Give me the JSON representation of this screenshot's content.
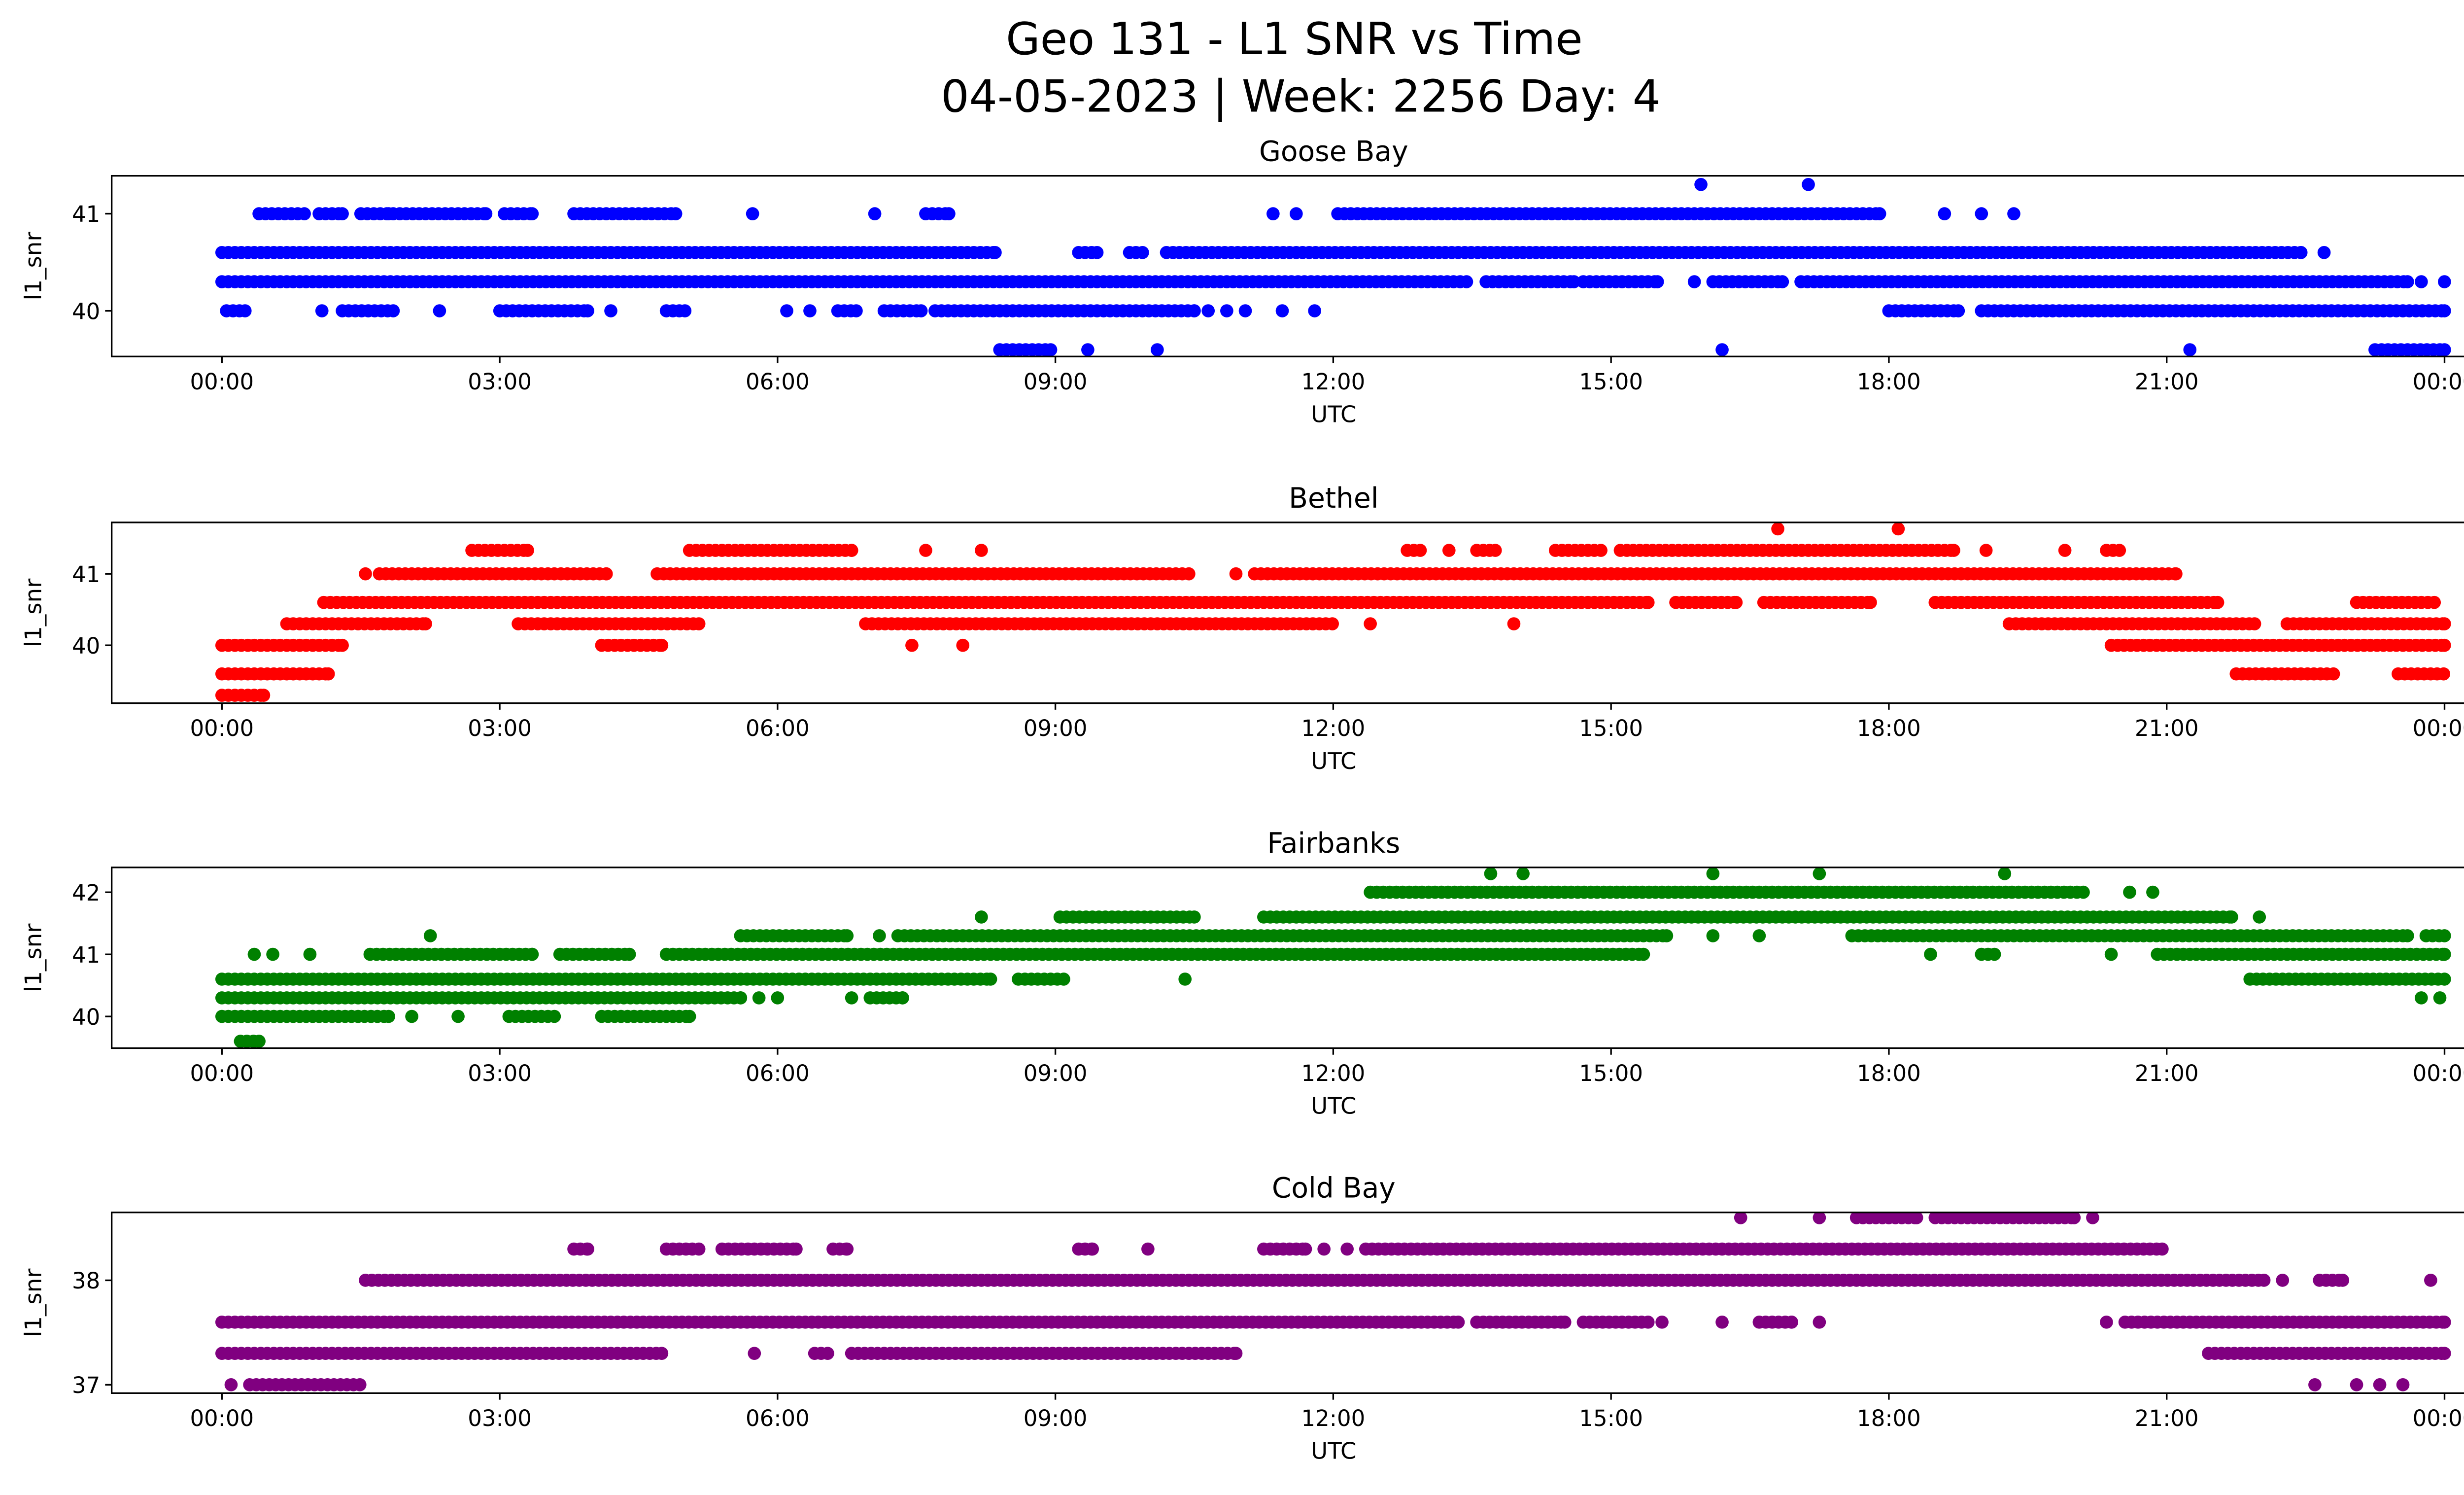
{
  "chart_data": {
    "type": "scatter",
    "title": [
      "Geo 131 - L1 SNR vs Time",
      "04-05-2023 | Week: 2256 Day: 4"
    ],
    "x_unit": "hours UTC",
    "xlim": [
      -1.19,
      25.2
    ],
    "x_ticks": [
      0,
      3,
      6,
      9,
      12,
      15,
      18,
      21,
      24
    ],
    "x_tick_labels": [
      "00:00",
      "03:00",
      "06:00",
      "09:00",
      "12:00",
      "15:00",
      "18:00",
      "21:00",
      "00:00"
    ],
    "subplots": [
      {
        "title": "Goose Bay",
        "xlabel": "UTC",
        "ylabel": "l1_snr",
        "color": "#0000ff",
        "ylim": [
          39.53,
          41.39
        ],
        "y_ticks": [
          40,
          41
        ],
        "y_tick_labels": [
          "40",
          "41"
        ],
        "runs": [
          [
            41.3,
            15.97,
            15.97
          ],
          [
            41.3,
            17.13,
            17.13
          ],
          [
            41.0,
            0.4,
            0.9
          ],
          [
            41.0,
            1.05,
            1.3
          ],
          [
            41.0,
            1.5,
            1.8
          ],
          [
            41.0,
            1.85,
            2.85
          ],
          [
            41.0,
            3.05,
            3.35
          ],
          [
            41.0,
            3.8,
            4.9
          ],
          [
            41.0,
            5.73,
            5.73
          ],
          [
            41.0,
            7.05,
            7.05
          ],
          [
            41.0,
            7.6,
            7.85
          ],
          [
            41.0,
            11.35,
            11.35
          ],
          [
            41.0,
            11.6,
            11.6
          ],
          [
            41.0,
            12.05,
            17.9
          ],
          [
            41.0,
            18.6,
            18.6
          ],
          [
            41.0,
            19.0,
            19.0
          ],
          [
            41.0,
            19.35,
            19.35
          ],
          [
            40.6,
            0,
            8.35
          ],
          [
            40.6,
            9.25,
            9.45
          ],
          [
            40.6,
            9.8,
            9.95
          ],
          [
            40.6,
            10.2,
            22.45
          ],
          [
            40.6,
            22.7,
            22.7
          ],
          [
            40.3,
            0,
            13.45
          ],
          [
            40.3,
            13.65,
            14.6
          ],
          [
            40.3,
            14.7,
            15.5
          ],
          [
            40.3,
            15.9,
            15.9
          ],
          [
            40.3,
            16.1,
            16.85
          ],
          [
            40.3,
            17.05,
            23.6
          ],
          [
            40.3,
            23.75,
            23.75
          ],
          [
            40.3,
            24,
            24
          ],
          [
            40.0,
            0.05,
            0.25
          ],
          [
            40.0,
            1.08,
            1.08
          ],
          [
            40.0,
            1.3,
            1.85
          ],
          [
            40.0,
            2.35,
            2.35
          ],
          [
            40.0,
            3.0,
            3.95
          ],
          [
            40.0,
            4.2,
            4.2
          ],
          [
            40.0,
            4.8,
            5.0
          ],
          [
            40.0,
            6.1,
            6.1
          ],
          [
            40.0,
            6.35,
            6.35
          ],
          [
            40.0,
            6.65,
            6.85
          ],
          [
            40.0,
            7.15,
            7.55
          ],
          [
            40.0,
            7.7,
            10.5
          ],
          [
            40.0,
            10.65,
            10.65
          ],
          [
            40.0,
            10.85,
            10.85
          ],
          [
            40.0,
            11.05,
            11.05
          ],
          [
            40.0,
            11.45,
            11.45
          ],
          [
            40.0,
            11.8,
            11.8
          ],
          [
            40.0,
            18.0,
            18.75
          ],
          [
            40.0,
            19.0,
            24
          ],
          [
            39.6,
            8.4,
            8.95
          ],
          [
            39.6,
            9.35,
            9.35
          ],
          [
            39.6,
            10.1,
            10.1
          ],
          [
            39.6,
            16.2,
            16.2
          ],
          [
            39.6,
            21.25,
            21.25
          ],
          [
            39.6,
            23.25,
            24
          ]
        ]
      },
      {
        "title": "Bethel",
        "xlabel": "UTC",
        "ylabel": "l1_snr",
        "color": "#ff0000",
        "ylim": [
          39.19,
          41.72
        ],
        "y_ticks": [
          40,
          41
        ],
        "y_tick_labels": [
          "40",
          "41"
        ],
        "runs": [
          [
            41.63,
            16.8,
            16.8
          ],
          [
            41.63,
            18.1,
            18.1
          ],
          [
            41.33,
            2.7,
            3.3
          ],
          [
            41.33,
            5.05,
            6.8
          ],
          [
            41.33,
            7.6,
            7.6
          ],
          [
            41.33,
            8.2,
            8.2
          ],
          [
            41.33,
            12.8,
            12.95
          ],
          [
            41.33,
            13.25,
            13.25
          ],
          [
            41.33,
            13.55,
            13.75
          ],
          [
            41.33,
            14.4,
            14.9
          ],
          [
            41.33,
            15.1,
            18.7
          ],
          [
            41.33,
            19.05,
            19.05
          ],
          [
            41.33,
            19.9,
            19.9
          ],
          [
            41.33,
            20.35,
            20.5
          ],
          [
            41.0,
            1.55,
            1.55
          ],
          [
            41.0,
            1.7,
            4.15
          ],
          [
            41.0,
            4.7,
            10.45
          ],
          [
            41.0,
            10.95,
            10.95
          ],
          [
            41.0,
            11.15,
            21.1
          ],
          [
            40.6,
            1.1,
            15.4
          ],
          [
            40.6,
            15.7,
            16.35
          ],
          [
            40.6,
            16.65,
            17.8
          ],
          [
            40.6,
            18.5,
            21.55
          ],
          [
            40.6,
            23.05,
            23.9
          ],
          [
            40.3,
            0.7,
            2.2
          ],
          [
            40.3,
            3.2,
            5.15
          ],
          [
            40.3,
            6.95,
            12.0
          ],
          [
            40.3,
            12.4,
            12.4
          ],
          [
            40.3,
            13.95,
            13.95
          ],
          [
            40.3,
            19.3,
            21.95
          ],
          [
            40.3,
            22.3,
            24
          ],
          [
            40.0,
            0,
            1.3
          ],
          [
            40.0,
            4.1,
            4.75
          ],
          [
            40.0,
            7.45,
            7.45
          ],
          [
            40.0,
            8.0,
            8.0
          ],
          [
            40.0,
            20.4,
            24
          ],
          [
            39.6,
            0,
            1.15
          ],
          [
            39.6,
            21.75,
            22.8
          ],
          [
            39.6,
            23.5,
            24
          ],
          [
            39.3,
            0,
            0.45
          ]
        ]
      },
      {
        "title": "Fairbanks",
        "xlabel": "UTC",
        "ylabel": "l1_snr",
        "color": "#008000",
        "ylim": [
          39.49,
          42.4
        ],
        "y_ticks": [
          40,
          41,
          42
        ],
        "y_tick_labels": [
          "40",
          "41",
          "42"
        ],
        "runs": [
          [
            42.3,
            13.7,
            13.7
          ],
          [
            42.3,
            14.05,
            14.05
          ],
          [
            42.3,
            16.1,
            16.1
          ],
          [
            42.3,
            17.25,
            17.25
          ],
          [
            42.3,
            19.25,
            19.25
          ],
          [
            42.0,
            12.4,
            20.1
          ],
          [
            42.0,
            20.6,
            20.6
          ],
          [
            42.0,
            20.85,
            20.85
          ],
          [
            41.6,
            8.2,
            8.2
          ],
          [
            41.6,
            9.05,
            10.5
          ],
          [
            41.6,
            11.25,
            21.7
          ],
          [
            41.6,
            22.0,
            22.0
          ],
          [
            41.3,
            2.25,
            2.25
          ],
          [
            41.3,
            5.6,
            6.75
          ],
          [
            41.3,
            7.1,
            7.1
          ],
          [
            41.3,
            7.3,
            15.6
          ],
          [
            41.3,
            16.1,
            16.1
          ],
          [
            41.3,
            16.6,
            16.6
          ],
          [
            41.3,
            17.6,
            23.6
          ],
          [
            41.3,
            23.8,
            24
          ],
          [
            41.0,
            0.35,
            0.35
          ],
          [
            41.0,
            0.55,
            0.55
          ],
          [
            41.0,
            0.95,
            0.95
          ],
          [
            41.0,
            1.6,
            3.35
          ],
          [
            41.0,
            3.65,
            4.4
          ],
          [
            41.0,
            4.8,
            15.35
          ],
          [
            41.0,
            18.45,
            18.45
          ],
          [
            41.0,
            19.0,
            19.15
          ],
          [
            41.0,
            20.4,
            20.4
          ],
          [
            41.0,
            20.9,
            24
          ],
          [
            40.6,
            0,
            8.3
          ],
          [
            40.6,
            8.6,
            9.1
          ],
          [
            40.6,
            10.4,
            10.4
          ],
          [
            40.6,
            21.9,
            24
          ],
          [
            40.3,
            0,
            5.6
          ],
          [
            40.3,
            5.8,
            5.8
          ],
          [
            40.3,
            6.0,
            6.0
          ],
          [
            40.3,
            6.8,
            6.8
          ],
          [
            40.3,
            7.0,
            7.35
          ],
          [
            40.3,
            23.75,
            23.75
          ],
          [
            40.3,
            23.95,
            23.95
          ],
          [
            40.0,
            0,
            1.8
          ],
          [
            40.0,
            2.05,
            2.05
          ],
          [
            40.0,
            2.55,
            2.55
          ],
          [
            40.0,
            3.1,
            3.6
          ],
          [
            40.0,
            4.1,
            5.05
          ],
          [
            39.6,
            0.2,
            0.4
          ]
        ]
      },
      {
        "title": "Cold Bay",
        "xlabel": "UTC",
        "ylabel": "l1_snr",
        "color": "#800080",
        "ylim": [
          36.92,
          38.65
        ],
        "y_ticks": [
          37,
          38
        ],
        "y_tick_labels": [
          "37",
          "38"
        ],
        "runs": [
          [
            38.6,
            16.4,
            16.4
          ],
          [
            38.6,
            17.25,
            17.25
          ],
          [
            38.6,
            17.65,
            18.3
          ],
          [
            38.6,
            18.5,
            20.0
          ],
          [
            38.6,
            20.2,
            20.2
          ],
          [
            38.3,
            3.8,
            3.95
          ],
          [
            38.3,
            4.8,
            5.15
          ],
          [
            38.3,
            5.4,
            6.2
          ],
          [
            38.3,
            6.6,
            6.75
          ],
          [
            38.3,
            9.25,
            9.4
          ],
          [
            38.3,
            10.0,
            10.0
          ],
          [
            38.3,
            11.25,
            11.7
          ],
          [
            38.3,
            11.9,
            11.9
          ],
          [
            38.3,
            12.15,
            12.15
          ],
          [
            38.3,
            12.35,
            20.95
          ],
          [
            38.0,
            1.55,
            22.05
          ],
          [
            38.0,
            22.25,
            22.25
          ],
          [
            38.0,
            22.65,
            22.9
          ],
          [
            38.0,
            23.85,
            23.85
          ],
          [
            37.6,
            0,
            13.35
          ],
          [
            37.6,
            13.55,
            14.5
          ],
          [
            37.6,
            14.7,
            15.4
          ],
          [
            37.6,
            15.55,
            15.55
          ],
          [
            37.6,
            16.2,
            16.2
          ],
          [
            37.6,
            16.6,
            16.95
          ],
          [
            37.6,
            17.25,
            17.25
          ],
          [
            37.6,
            20.35,
            20.35
          ],
          [
            37.6,
            20.55,
            24
          ],
          [
            37.3,
            0,
            4.75
          ],
          [
            37.3,
            5.75,
            5.75
          ],
          [
            37.3,
            6.4,
            6.55
          ],
          [
            37.3,
            6.8,
            10.95
          ],
          [
            37.3,
            21.45,
            24
          ],
          [
            37.0,
            0.1,
            0.1
          ],
          [
            37.0,
            0.3,
            1.5
          ],
          [
            37.0,
            22.6,
            22.6
          ],
          [
            37.0,
            23.05,
            23.05
          ],
          [
            37.0,
            23.3,
            23.3
          ],
          [
            37.0,
            23.55,
            23.55
          ]
        ]
      }
    ]
  }
}
